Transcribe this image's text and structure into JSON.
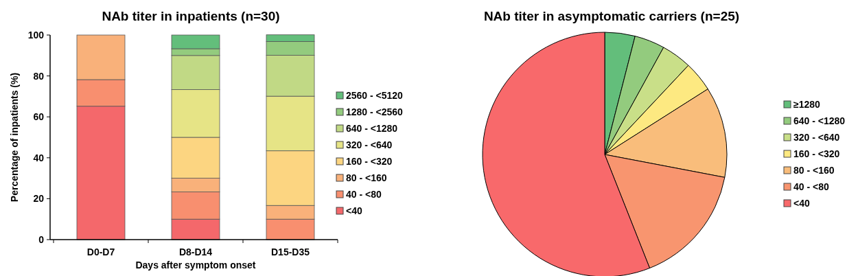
{
  "chart_data": [
    {
      "type": "bar",
      "title": "NAb titer in inpatients (n=30)",
      "xlabel": "Days after symptom onset",
      "ylabel": "Percentage of inpatients (%)",
      "categories": [
        "D0-D7",
        "D8-D14",
        "D15-D35"
      ],
      "stacked": true,
      "ylim": [
        0,
        100
      ],
      "yticks": [
        0,
        20,
        40,
        60,
        80,
        100
      ],
      "legend": "right",
      "series": [
        {
          "name": "<40",
          "color": "#f4686b",
          "values": [
            65.2,
            10,
            0
          ]
        },
        {
          "name": "40 - <80",
          "color": "#f88f6f",
          "values": [
            13,
            13.3,
            10
          ]
        },
        {
          "name": "80 - <160",
          "color": "#f9b17a",
          "values": [
            21.8,
            6.7,
            6.7
          ]
        },
        {
          "name": "160 - <320",
          "color": "#fcd581",
          "values": [
            0,
            20,
            26.7
          ]
        },
        {
          "name": "320 - <640",
          "color": "#e6e486",
          "values": [
            0,
            23.3,
            26.7
          ]
        },
        {
          "name": "640 - <1280",
          "color": "#c1d985",
          "values": [
            0,
            16.7,
            20
          ]
        },
        {
          "name": "1280 - <2560",
          "color": "#93cb7e",
          "values": [
            0,
            3.3,
            6.7
          ]
        },
        {
          "name": "2560 - <5120",
          "color": "#63be7b",
          "values": [
            0,
            6.7,
            3.3
          ]
        }
      ]
    },
    {
      "type": "pie",
      "title": "NAb titer in asymptomatic carriers (n=25)",
      "legend": "right",
      "categories": [
        "≥1280",
        "640 - <1280",
        "320 - <640",
        "160 - <320",
        "80 - <160",
        "40 - <80",
        "<40"
      ],
      "values": [
        4,
        4,
        4,
        4,
        12,
        16,
        56
      ],
      "colors": [
        "#63be7b",
        "#93cb7e",
        "#c9df88",
        "#fde981",
        "#f9bd7b",
        "#f8956f",
        "#f8696b"
      ]
    }
  ]
}
